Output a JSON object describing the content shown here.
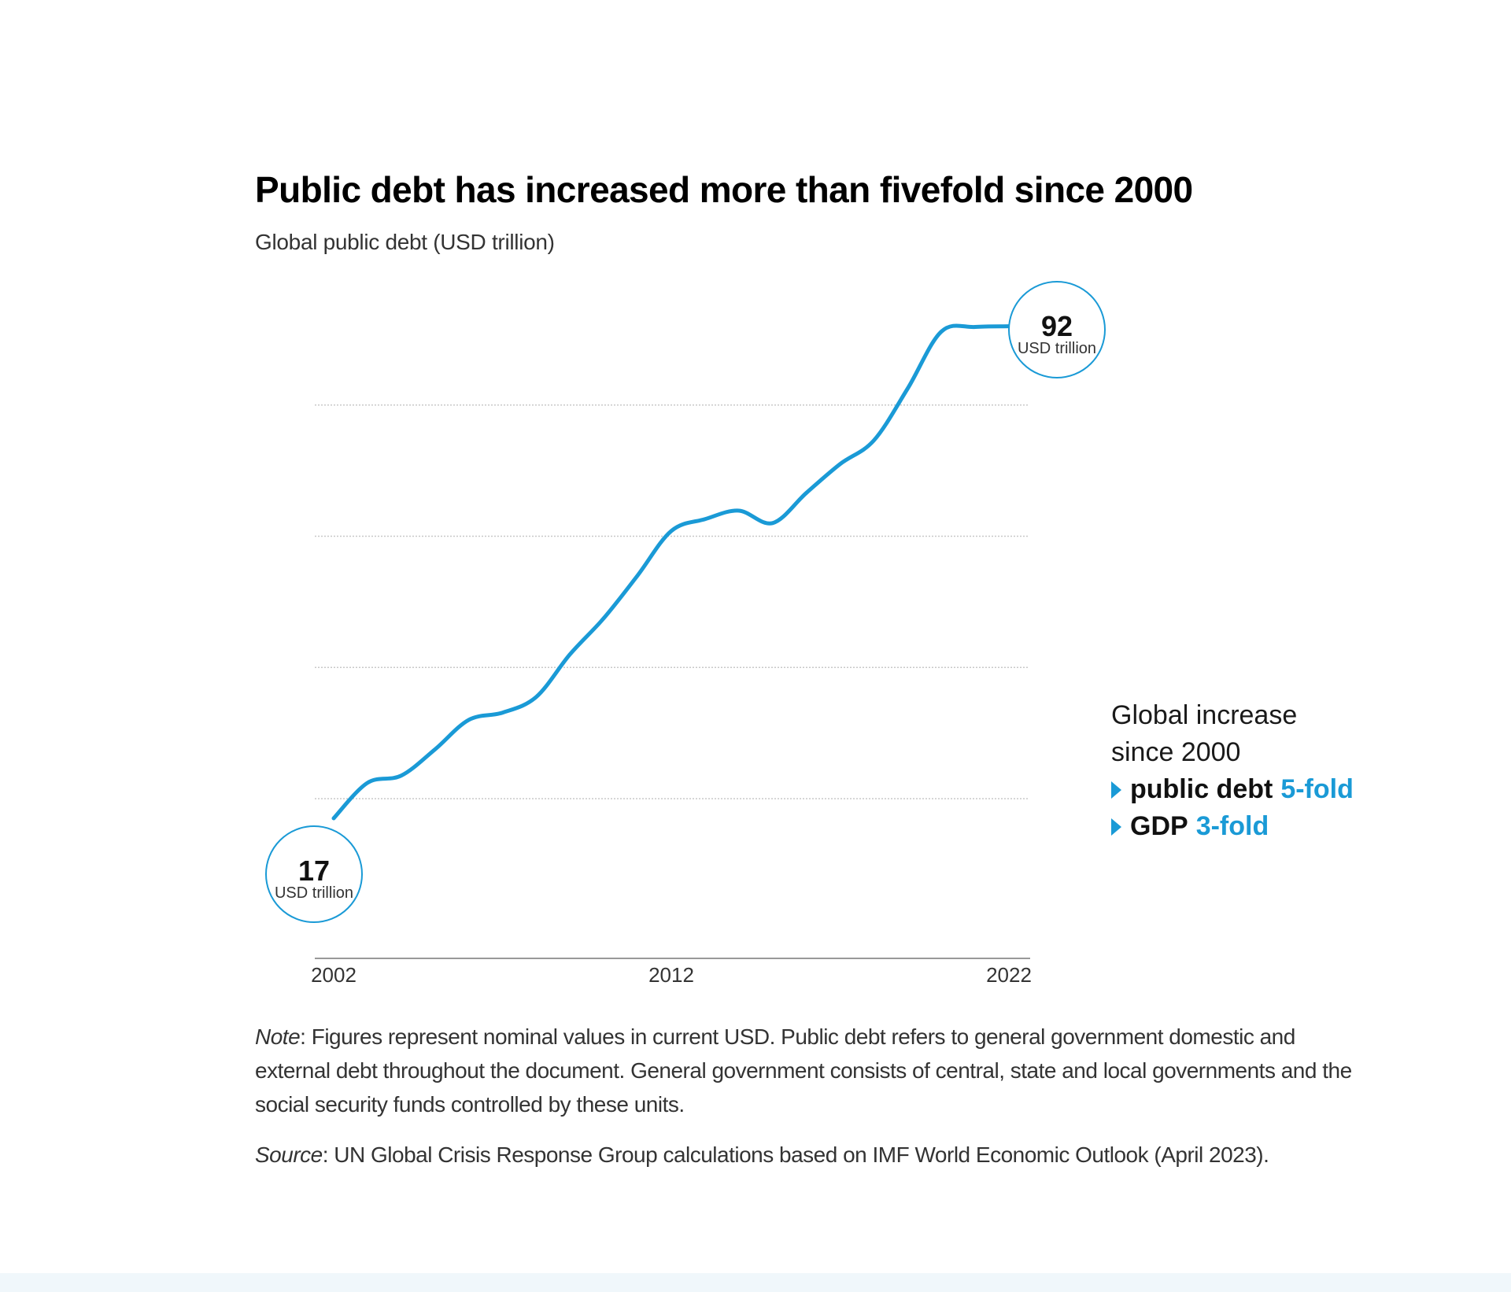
{
  "chart_data": {
    "type": "line",
    "title": "Public debt has increased more than fivefold since 2000",
    "subtitle": "Global public debt (USD trillion)",
    "xlabel": "",
    "ylabel": "USD trillion",
    "x": [
      2002,
      2003,
      2004,
      2005,
      2006,
      2007,
      2008,
      2009,
      2010,
      2011,
      2012,
      2013,
      2014,
      2015,
      2016,
      2017,
      2018,
      2019,
      2020,
      2021,
      2022
    ],
    "series": [
      {
        "name": "Global public debt",
        "values": [
          17,
          22.4,
          23.5,
          27.5,
          32,
          33.1,
          35.5,
          42,
          47.5,
          54,
          60.8,
          62.6,
          63.9,
          62,
          66.6,
          71,
          74.6,
          82.5,
          91.2,
          91.9,
          92
        ]
      }
    ],
    "x_ticks": [
      "2002",
      "2012",
      "2022"
    ],
    "ylim": [
      8,
      94
    ],
    "gridlines": [
      20,
      40,
      60,
      80
    ],
    "grid": true,
    "start_annotation": {
      "value": "17",
      "unit": "USD trillion"
    },
    "end_annotation": {
      "value": "92",
      "unit": "USD trillion"
    }
  },
  "legend": {
    "heading": "Global increase since 2000",
    "items": [
      {
        "label": "public debt",
        "value": "5-fold"
      },
      {
        "label": "GDP",
        "value": "3-fold"
      }
    ]
  },
  "notes": {
    "note_label": "Note",
    "note_text": ": Figures represent nominal values in current USD. Public debt refers to general government domestic and external debt throughout the document. General government consists of central, state and local governments and the social security funds controlled by these units.",
    "source_label": "Source",
    "source_text": ": UN Global Crisis Response Group calculations based on IMF World Economic Outlook (April 2023)."
  },
  "colors": {
    "accent": "#1a9ad6",
    "grid": "#c8c8c8",
    "axis": "#999999",
    "text": "#111111",
    "muted": "#333333"
  }
}
